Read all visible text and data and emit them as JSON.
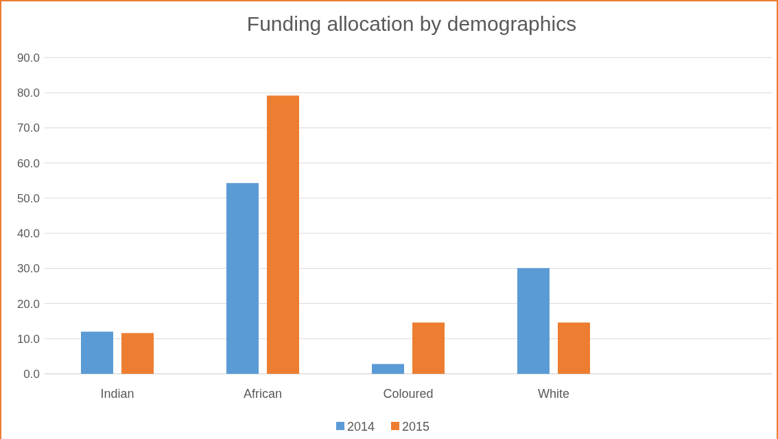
{
  "chart_data": {
    "type": "bar",
    "title": "Funding allocation by demographics",
    "categories": [
      "Indian",
      "African",
      "Coloured",
      "White",
      null
    ],
    "series": [
      {
        "name": "2014",
        "color": "#5b9bd5",
        "values": [
          12.0,
          54.3,
          2.8,
          30.1,
          null
        ]
      },
      {
        "name": "2015",
        "color": "#ed7d31",
        "values": [
          11.6,
          79.2,
          14.6,
          14.6,
          null
        ]
      }
    ],
    "ylim": [
      0,
      90
    ],
    "yticks": [
      {
        "value": 0,
        "label": "0.0"
      },
      {
        "value": 10,
        "label": "10.0"
      },
      {
        "value": 20,
        "label": "20.0"
      },
      {
        "value": 30,
        "label": "30.0"
      },
      {
        "value": 40,
        "label": "40.0"
      },
      {
        "value": 50,
        "label": "50.0"
      },
      {
        "value": 60,
        "label": "60.0"
      },
      {
        "value": 70,
        "label": "70.0"
      },
      {
        "value": 80,
        "label": "80.0"
      },
      {
        "value": 90,
        "label": "90.0"
      }
    ],
    "grid": "y",
    "legend": "bottom"
  }
}
